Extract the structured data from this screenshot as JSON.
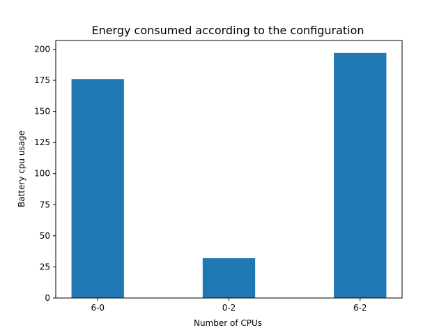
{
  "chart_data": {
    "type": "bar",
    "title": "Energy consumed according to the configuration",
    "xlabel": "Number of CPUs",
    "ylabel": "Battery cpu usage",
    "categories": [
      "6-0",
      "0-2",
      "6-2"
    ],
    "values": [
      176,
      32,
      197
    ],
    "ylim": [
      0,
      207
    ],
    "yticks": [
      0,
      25,
      50,
      75,
      100,
      125,
      150,
      175,
      200
    ],
    "grid": false,
    "bar_color": "#1f77b4"
  }
}
